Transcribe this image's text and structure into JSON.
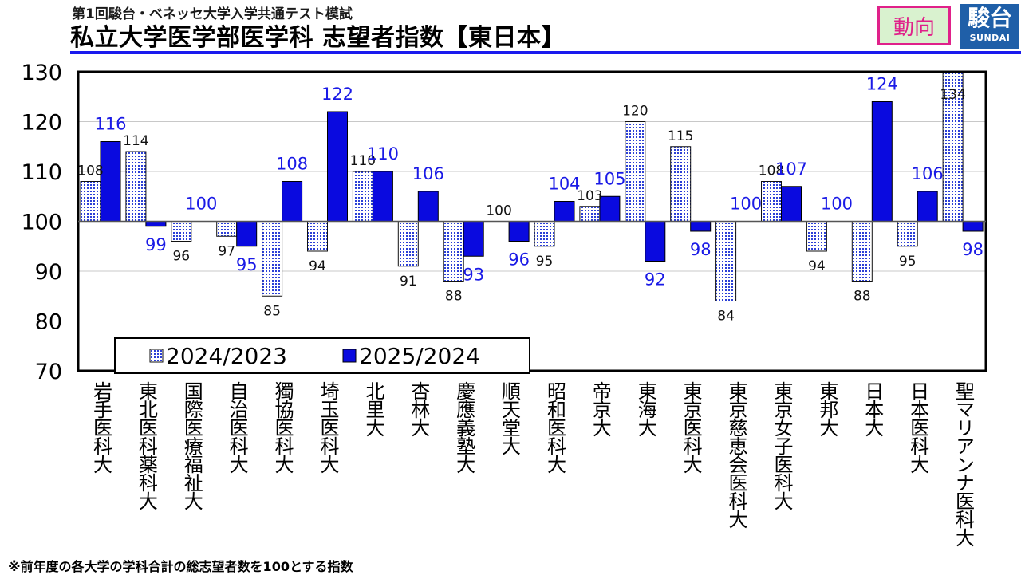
{
  "header": {
    "subtitle": "第1回駿台・ベネッセ大学入学共通テスト模試",
    "title": "私立大学医学部医学科 志望者指数【東日本】",
    "badge": "動向",
    "logo_main": "駿台",
    "logo_sub": "SUNDAI"
  },
  "footnote": "※前年度の各大学の学科合計の総志望者数を100とする指数",
  "colors": {
    "series_2025": "#0a0adf",
    "series_2024_fill": "#ffffff",
    "series_2024_dots": "#2b3fd6",
    "label_2025": "#1a1ae6",
    "label_2024": "#111111",
    "title_rule": "#1a1aee",
    "badge_border": "#e0218a",
    "badge_bg": "#d9f2cf",
    "logo_bg": "#1f5fa8"
  },
  "chart_data": {
    "type": "bar",
    "title": "私立大学医学部医学科 志望者指数【東日本】",
    "baseline": 100,
    "ylim": [
      70,
      130
    ],
    "yticks": [
      70,
      80,
      90,
      100,
      110,
      120,
      130
    ],
    "grid": true,
    "legend_position": "bottom-left",
    "categories": [
      "岩手医科大",
      "東北医科薬科大",
      "国際医療福祉大",
      "自治医科大",
      "獨協医科大",
      "埼玉医科大",
      "北里大",
      "杏林大",
      "慶應義塾大",
      "順天堂大",
      "昭和医科大",
      "帝京大",
      "東海大",
      "東京医科大",
      "東京慈恵会医科大",
      "東京女子医科大",
      "東邦大",
      "日本大",
      "日本医科大",
      "聖マリアンナ医科大"
    ],
    "series": [
      {
        "name": "2024/2023",
        "values": [
          108,
          114,
          96,
          97,
          85,
          94,
          110,
          91,
          88,
          100,
          95,
          103,
          120,
          115,
          84,
          108,
          94,
          88,
          95,
          134
        ]
      },
      {
        "name": "2025/2024",
        "values": [
          116,
          99,
          100,
          95,
          108,
          122,
          110,
          106,
          93,
          96,
          104,
          105,
          92,
          98,
          100,
          107,
          100,
          124,
          106,
          98
        ]
      }
    ]
  }
}
